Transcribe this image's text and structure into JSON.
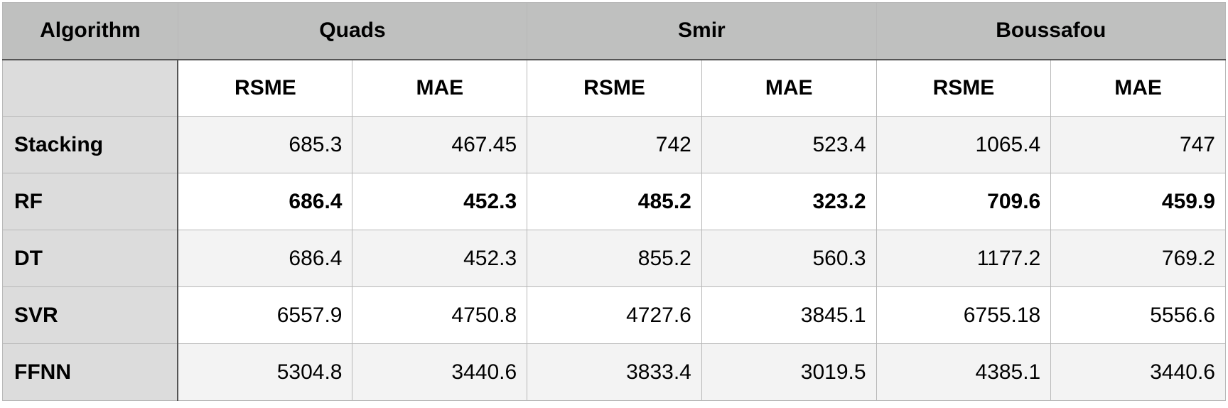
{
  "header": {
    "algorithm_label": "Algorithm",
    "groups": [
      "Quads",
      "Smir",
      "Boussafou"
    ],
    "subcolumns": [
      "RSME",
      "MAE",
      "RSME",
      "MAE",
      "RSME",
      "MAE"
    ]
  },
  "rows": [
    {
      "name": "Stacking",
      "bold": false,
      "values": [
        "685.3",
        "467.45",
        "742",
        "523.4",
        "1065.4",
        "747"
      ]
    },
    {
      "name": "RF",
      "bold": true,
      "values": [
        "686.4",
        "452.3",
        "485.2",
        "323.2",
        "709.6",
        "459.9"
      ]
    },
    {
      "name": "DT",
      "bold": false,
      "values": [
        "686.4",
        "452.3",
        "855.2",
        "560.3",
        "1177.2",
        "769.2"
      ]
    },
    {
      "name": "SVR",
      "bold": false,
      "values": [
        "6557.9",
        "4750.8",
        "4727.6",
        "3845.1",
        "6755.18",
        "5556.6"
      ]
    },
    {
      "name": "FFNN",
      "bold": false,
      "values": [
        "5304.8",
        "3440.6",
        "3833.4",
        "3019.5",
        "4385.1",
        "3440.6"
      ]
    }
  ],
  "colors": {
    "group_header_bg": "#bfc0bf",
    "row_header_bg": "#dcdcdc",
    "striped_row_bg": "#f3f3f3",
    "grid": "#b8b8b8"
  }
}
